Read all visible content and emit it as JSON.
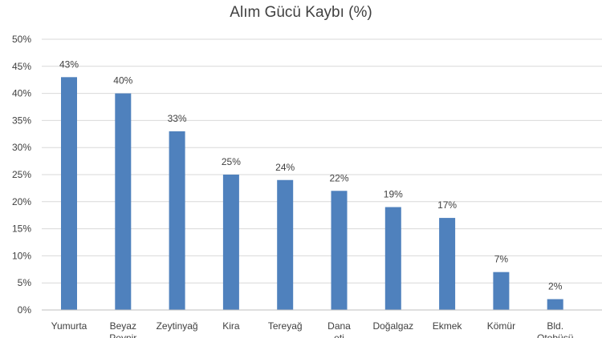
{
  "chart_data": {
    "type": "bar",
    "title": "Alım Gücü Kaybı (%)",
    "xlabel": "",
    "ylabel": "",
    "ylim": [
      0,
      50
    ],
    "y_ticks": [
      "0%",
      "5%",
      "10%",
      "15%",
      "20%",
      "25%",
      "30%",
      "35%",
      "40%",
      "45%",
      "50%"
    ],
    "y_tick_values": [
      0,
      5,
      10,
      15,
      20,
      25,
      30,
      35,
      40,
      45,
      50
    ],
    "categories": [
      "Yumurta",
      "Beyaz Peynir",
      "Zeytinyağ",
      "Kira",
      "Tereyağ",
      "Dana eti",
      "Doğalgaz",
      "Ekmek",
      "Kömür",
      "Bld. Otobüsü"
    ],
    "values": [
      43,
      40,
      33,
      25,
      24,
      22,
      19,
      17,
      7,
      2
    ],
    "data_labels": [
      "43%",
      "40%",
      "33%",
      "25%",
      "24%",
      "22%",
      "19%",
      "17%",
      "7%",
      "2%"
    ],
    "grid": true,
    "legend": "none",
    "colors": {
      "bar": "#4f81bd",
      "grid": "#d9d9d9",
      "text": "#404040"
    }
  }
}
